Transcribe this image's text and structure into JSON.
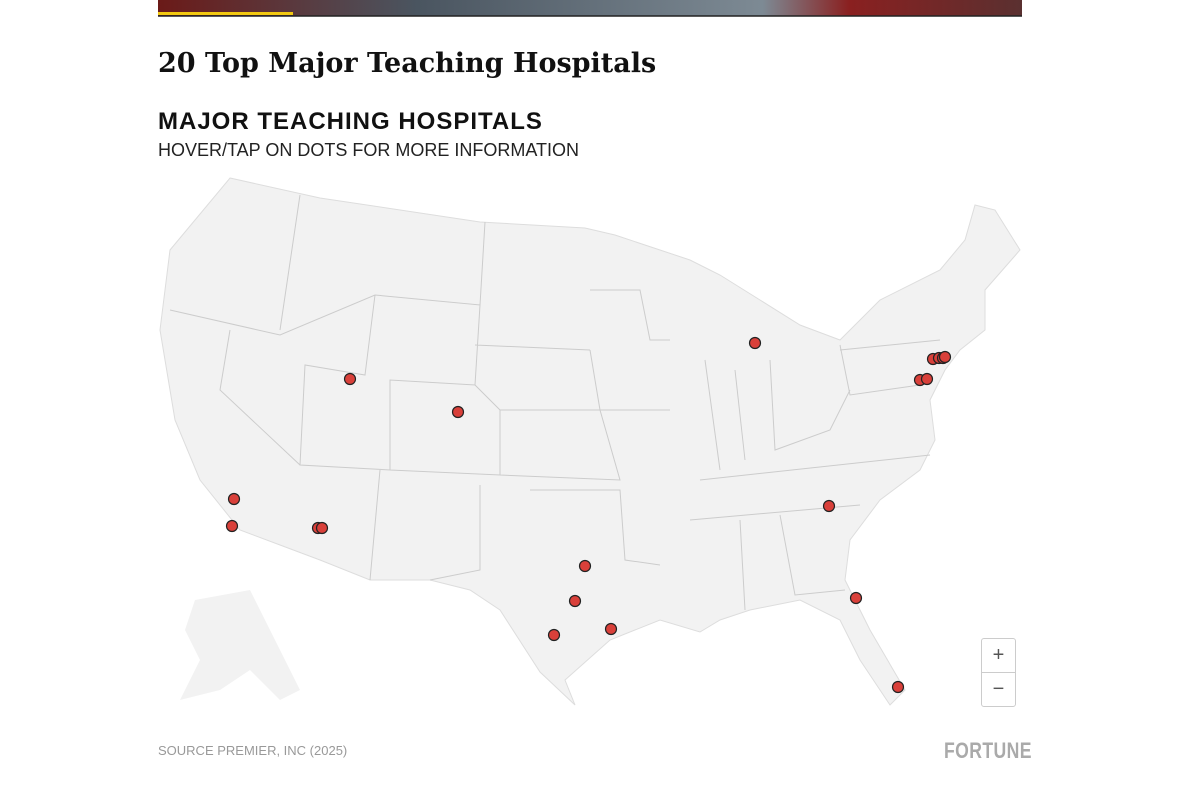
{
  "header": {
    "title": "20 Top Major Teaching Hospitals"
  },
  "map": {
    "title": "MAJOR TEACHING HOSPITALS",
    "subtitle": "HOVER/TAP ON DOTS FOR MORE INFORMATION",
    "zoom_in": "+",
    "zoom_out": "−"
  },
  "footer": {
    "source": "SOURCE PREMIER, INC (2025)",
    "brand": "FORTUNE"
  }
}
